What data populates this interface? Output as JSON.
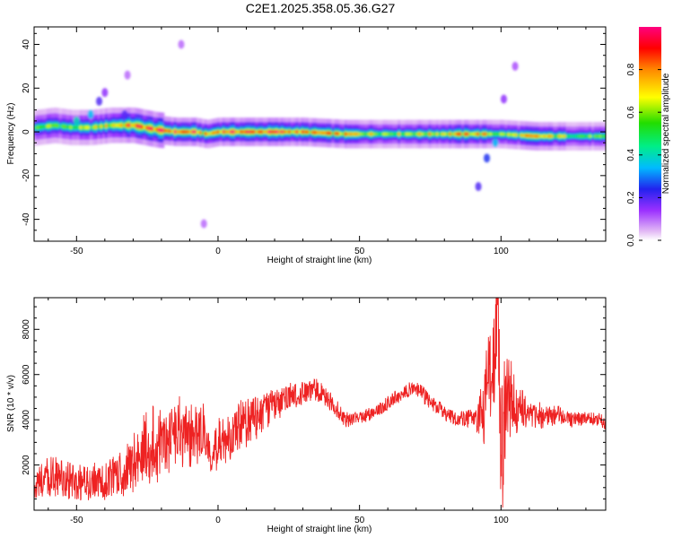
{
  "title": "C2E1.2025.358.05.36.G27",
  "colors": {
    "snr_line": "#ee2222",
    "colormap": [
      "#ffffff",
      "#e4bdf5",
      "#9b30ff",
      "#2222ee",
      "#00bbff",
      "#00ee88",
      "#22dd00",
      "#ffff00",
      "#ff8800",
      "#ff0000",
      "#ff007f"
    ]
  },
  "chart_data": [
    {
      "type": "heatmap",
      "name": "spectrogram",
      "xlabel": "Height of straight line (km)",
      "ylabel": "Frequency (Hz)",
      "xlim": [
        -65,
        137
      ],
      "ylim": [
        -50,
        48
      ],
      "xticks": [
        -50,
        0,
        50,
        100
      ],
      "xtick_labels": [
        "-50",
        "0",
        "50",
        "100"
      ],
      "yticks": [
        -40,
        -20,
        0,
        20,
        40
      ],
      "ytick_labels": [
        "-40",
        "-20",
        "0",
        "20",
        "40"
      ],
      "colorbar": {
        "label": "Normalized spectral amplitude",
        "range": [
          0.0,
          1.0
        ],
        "ticks": [
          0.0,
          0.2,
          0.4,
          0.6,
          0.8
        ],
        "tick_labels": [
          "0.0",
          "0.2",
          "0.4",
          "0.6",
          "0.8"
        ]
      },
      "ridge": [
        {
          "x": -64,
          "y": 2,
          "amp": 0.55
        },
        {
          "x": -58,
          "y": 3,
          "amp": 0.6
        },
        {
          "x": -52,
          "y": 2,
          "amp": 0.55
        },
        {
          "x": -45,
          "y": 2,
          "amp": 0.6
        },
        {
          "x": -38,
          "y": 3,
          "amp": 0.7
        },
        {
          "x": -30,
          "y": 3,
          "amp": 0.85
        },
        {
          "x": -22,
          "y": 1,
          "amp": 0.9
        },
        {
          "x": -15,
          "y": 0,
          "amp": 0.9
        },
        {
          "x": -8,
          "y": 0,
          "amp": 0.85
        },
        {
          "x": -4,
          "y": -1,
          "amp": 0.7
        },
        {
          "x": 0,
          "y": 0,
          "amp": 0.9
        },
        {
          "x": 10,
          "y": 0,
          "amp": 0.9
        },
        {
          "x": 20,
          "y": 0,
          "amp": 0.9
        },
        {
          "x": 30,
          "y": 0,
          "amp": 0.8
        },
        {
          "x": 45,
          "y": -1,
          "amp": 0.75
        },
        {
          "x": 60,
          "y": -1,
          "amp": 0.65
        },
        {
          "x": 75,
          "y": -1,
          "amp": 0.7
        },
        {
          "x": 90,
          "y": -1,
          "amp": 0.8
        },
        {
          "x": 100,
          "y": -1,
          "amp": 0.6
        },
        {
          "x": 112,
          "y": -2,
          "amp": 0.75
        },
        {
          "x": 125,
          "y": -2,
          "amp": 0.6
        },
        {
          "x": 137,
          "y": -2,
          "amp": 0.5
        }
      ],
      "scatter_features": [
        {
          "x": -45,
          "y": 8,
          "amp": 0.35
        },
        {
          "x": -42,
          "y": 14,
          "amp": 0.2
        },
        {
          "x": -40,
          "y": 18,
          "amp": 0.15
        },
        {
          "x": -50,
          "y": 5,
          "amp": 0.4
        },
        {
          "x": -33,
          "y": 8,
          "amp": 0.2
        },
        {
          "x": -13,
          "y": 40,
          "amp": 0.1
        },
        {
          "x": -32,
          "y": 26,
          "amp": 0.1
        },
        {
          "x": -5,
          "y": -42,
          "amp": 0.1
        },
        {
          "x": 92,
          "y": -25,
          "amp": 0.2
        },
        {
          "x": 95,
          "y": -12,
          "amp": 0.25
        },
        {
          "x": 98,
          "y": -5,
          "amp": 0.35
        },
        {
          "x": 101,
          "y": 15,
          "amp": 0.15
        },
        {
          "x": 105,
          "y": 30,
          "amp": 0.12
        }
      ]
    },
    {
      "type": "line",
      "name": "snr",
      "xlabel": "Height of straight line (km)",
      "ylabel": "SNR (10 * v/v)",
      "xlim": [
        -65,
        137
      ],
      "ylim": [
        0,
        9400
      ],
      "xticks": [
        -50,
        0,
        50,
        100
      ],
      "xtick_labels": [
        "-50",
        "0",
        "50",
        "100"
      ],
      "yticks": [
        2000,
        4000,
        6000,
        8000
      ],
      "ytick_labels": [
        "2000",
        "4000",
        "6000",
        "8000"
      ],
      "x": [
        -65,
        -60,
        -55,
        -50,
        -45,
        -40,
        -35,
        -30,
        -25,
        -22,
        -18,
        -15,
        -10,
        -5,
        -2,
        0,
        5,
        10,
        15,
        20,
        25,
        30,
        35,
        40,
        45,
        50,
        55,
        60,
        65,
        70,
        75,
        80,
        85,
        90,
        93,
        95,
        97,
        99,
        100,
        102,
        105,
        110,
        115,
        120,
        125,
        130,
        137
      ],
      "y": [
        1000,
        1500,
        1400,
        1100,
        1300,
        1300,
        1600,
        2000,
        3000,
        2800,
        3000,
        3500,
        3200,
        3300,
        2300,
        3000,
        3500,
        3800,
        4200,
        4700,
        5000,
        5200,
        5300,
        4800,
        4000,
        4100,
        4300,
        4700,
        5200,
        5400,
        4800,
        4300,
        4000,
        4100,
        4200,
        5500,
        7000,
        8500,
        2000,
        5500,
        4600,
        4300,
        4100,
        4200,
        4000,
        4100,
        3900
      ],
      "jitter": [
        500,
        900,
        900,
        800,
        800,
        800,
        900,
        1200,
        1800,
        1600,
        1600,
        1500,
        1400,
        1300,
        900,
        1100,
        1100,
        1000,
        900,
        700,
        600,
        500,
        450,
        400,
        350,
        300,
        300,
        300,
        300,
        350,
        350,
        300,
        300,
        400,
        1200,
        2200,
        3000,
        3200,
        3000,
        2200,
        1200,
        700,
        500,
        400,
        350,
        300,
        300
      ]
    }
  ]
}
